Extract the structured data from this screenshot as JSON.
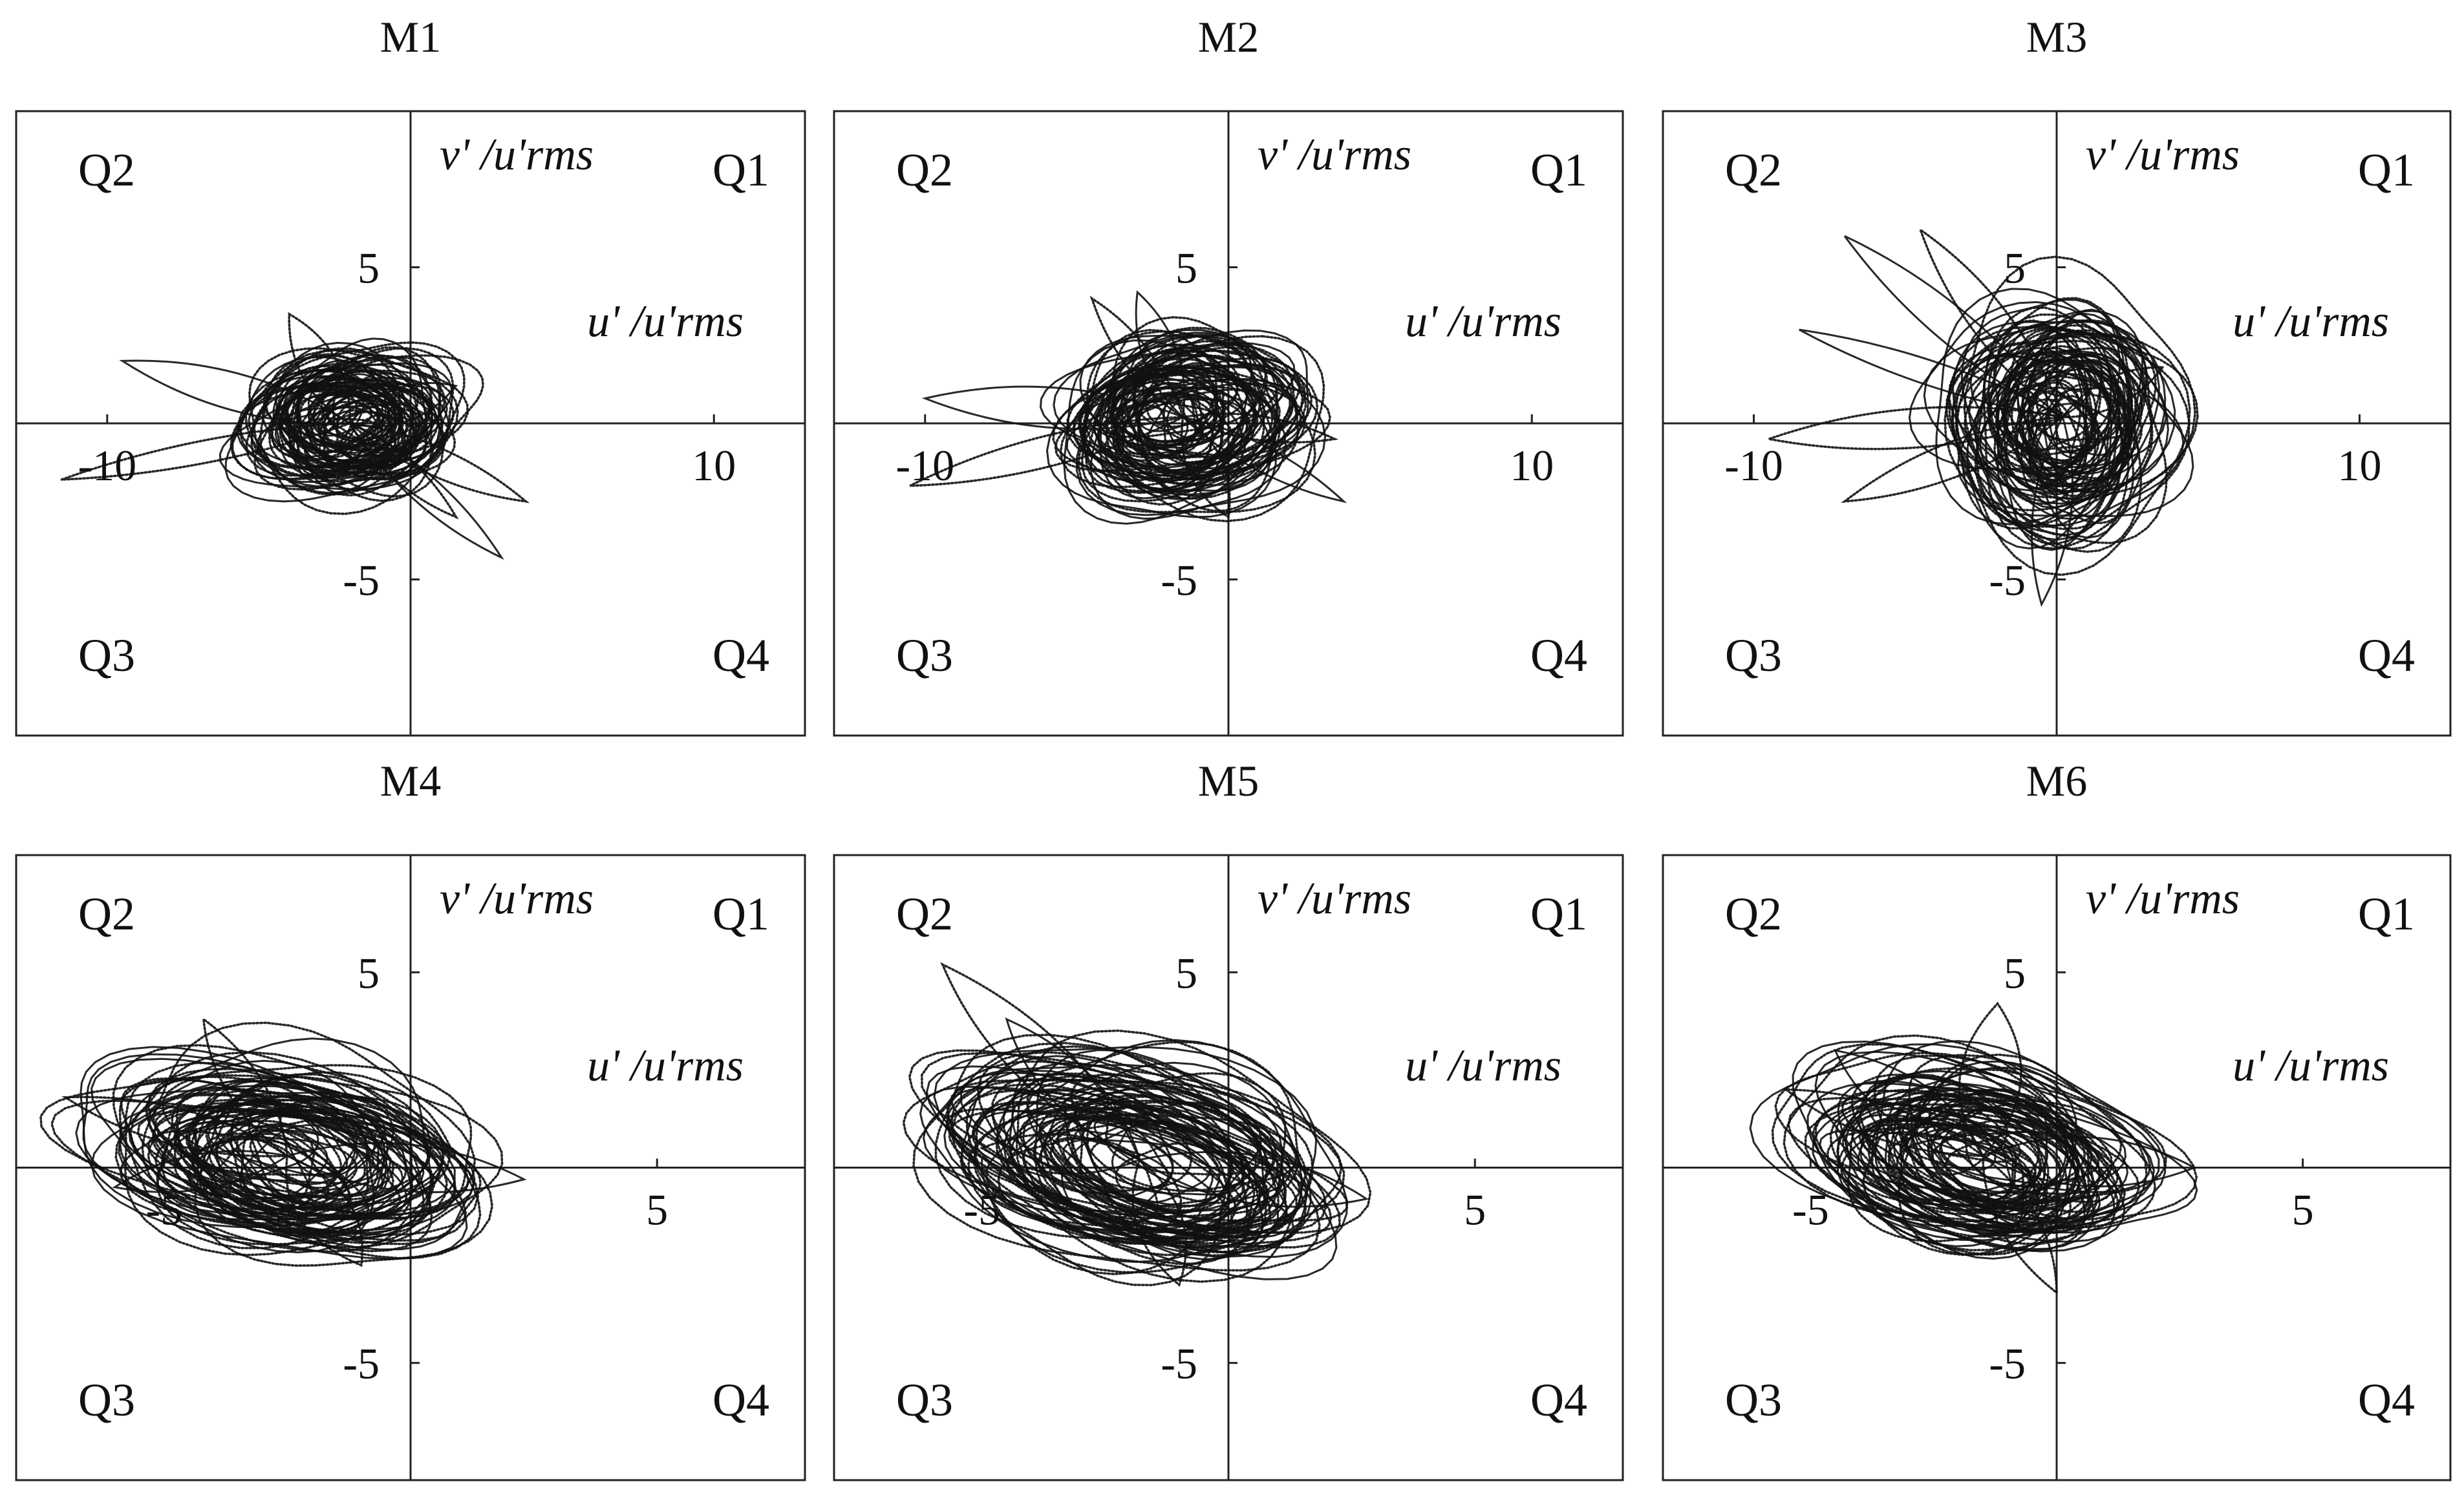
{
  "chart_data": [
    {
      "type": "scatter",
      "panel": "M1",
      "title": "M1",
      "xlabel": "u' /u'rms",
      "ylabel": "v' /u'rms",
      "xlim": [
        -13,
        13
      ],
      "ylim": [
        -10,
        10
      ],
      "xticks": [
        -10,
        10
      ],
      "yticks": [
        5,
        -5
      ],
      "quadrants": [
        "Q1",
        "Q2",
        "Q3",
        "Q4"
      ],
      "cloud": {
        "center": [
          -2,
          0.0
        ],
        "radius": [
          3.0,
          2.0
        ],
        "tilt_deg": 5
      },
      "excursions": [
        [
          -11.5,
          -1.8
        ],
        [
          -9.5,
          2.0
        ],
        [
          -4,
          3.5
        ],
        [
          1.5,
          1.2
        ],
        [
          3.8,
          -2.5
        ],
        [
          3.0,
          -4.3
        ],
        [
          1.5,
          -3.0
        ]
      ],
      "grid": false
    },
    {
      "type": "scatter",
      "panel": "M2",
      "title": "M2",
      "xlabel": "u' /u'rms",
      "ylabel": "v' /u'rms",
      "xlim": [
        -13,
        13
      ],
      "ylim": [
        -10,
        10
      ],
      "xticks": [
        -10,
        10
      ],
      "yticks": [
        5,
        -5
      ],
      "quadrants": [
        "Q1",
        "Q2",
        "Q3",
        "Q4"
      ],
      "cloud": {
        "center": [
          -1.5,
          0.2
        ],
        "radius": [
          3.5,
          2.4
        ],
        "tilt_deg": 8
      },
      "excursions": [
        [
          -10.5,
          -2.0
        ],
        [
          -10.0,
          0.8
        ],
        [
          -4.5,
          4.0
        ],
        [
          -3.0,
          4.2
        ],
        [
          3.5,
          -0.5
        ],
        [
          3.8,
          -2.5
        ],
        [
          0.0,
          -3.0
        ]
      ],
      "grid": false
    },
    {
      "type": "scatter",
      "panel": "M3",
      "title": "M3",
      "xlabel": "u' /u'rms",
      "ylabel": "v' /u'rms",
      "xlim": [
        -13,
        13
      ],
      "ylim": [
        -10,
        10
      ],
      "xticks": [
        -10,
        10
      ],
      "yticks": [
        5,
        -5
      ],
      "quadrants": [
        "Q1",
        "Q2",
        "Q3",
        "Q4"
      ],
      "cloud": {
        "center": [
          0.2,
          0.2
        ],
        "radius": [
          3.2,
          3.4
        ],
        "tilt_deg": 0
      },
      "excursions": [
        [
          -9.5,
          -0.5
        ],
        [
          -8.5,
          3.0
        ],
        [
          -7.0,
          -2.5
        ],
        [
          -7.0,
          6.0
        ],
        [
          -4.5,
          6.2
        ],
        [
          -0.5,
          -5.8
        ],
        [
          3.5,
          1.8
        ]
      ],
      "grid": false
    },
    {
      "type": "scatter",
      "panel": "M4",
      "title": "M4",
      "xlabel": "u' /u'rms",
      "ylabel": "v' /u'rms",
      "xlim": [
        -8,
        8
      ],
      "ylim": [
        -8,
        8
      ],
      "xticks": [
        -5,
        5
      ],
      "yticks": [
        5,
        -5
      ],
      "quadrants": [
        "Q1",
        "Q2",
        "Q3",
        "Q4"
      ],
      "cloud": {
        "center": [
          -2.5,
          0.3
        ],
        "radius": [
          3.4,
          2.0
        ],
        "tilt_deg": -16
      },
      "excursions": [
        [
          -7.0,
          1.8
        ],
        [
          -6.0,
          -0.5
        ],
        [
          -4.2,
          3.8
        ],
        [
          2.3,
          -0.3
        ],
        [
          -1.0,
          -2.5
        ]
      ],
      "grid": false
    },
    {
      "type": "scatter",
      "panel": "M5",
      "title": "M5",
      "xlabel": "u' /u'rms",
      "ylabel": "v' /u'rms",
      "xlim": [
        -8,
        8
      ],
      "ylim": [
        -8,
        8
      ],
      "xticks": [
        -5,
        5
      ],
      "yticks": [
        5,
        -5
      ],
      "quadrants": [
        "Q1",
        "Q2",
        "Q3",
        "Q4"
      ],
      "cloud": {
        "center": [
          -1.8,
          0.2
        ],
        "radius": [
          3.6,
          2.1
        ],
        "tilt_deg": -22
      },
      "excursions": [
        [
          -5.8,
          5.2
        ],
        [
          -4.5,
          3.8
        ],
        [
          -5.0,
          0.5
        ],
        [
          2.8,
          -0.8
        ],
        [
          -1.0,
          -3.0
        ]
      ],
      "grid": false
    },
    {
      "type": "scatter",
      "panel": "M6",
      "title": "M6",
      "xlabel": "u' /u'rms",
      "ylabel": "v' /u'rms",
      "xlim": [
        -8,
        8
      ],
      "ylim": [
        -8,
        8
      ],
      "xticks": [
        -5,
        5
      ],
      "yticks": [
        5,
        -5
      ],
      "quadrants": [
        "Q1",
        "Q2",
        "Q3",
        "Q4"
      ],
      "cloud": {
        "center": [
          -1.5,
          0.3
        ],
        "radius": [
          3.2,
          2.1
        ],
        "tilt_deg": -22
      },
      "excursions": [
        [
          -5.5,
          2.0
        ],
        [
          -4.5,
          3.0
        ],
        [
          -1.2,
          4.2
        ],
        [
          2.8,
          0.0
        ],
        [
          0.0,
          -3.2
        ]
      ],
      "grid": false
    }
  ]
}
